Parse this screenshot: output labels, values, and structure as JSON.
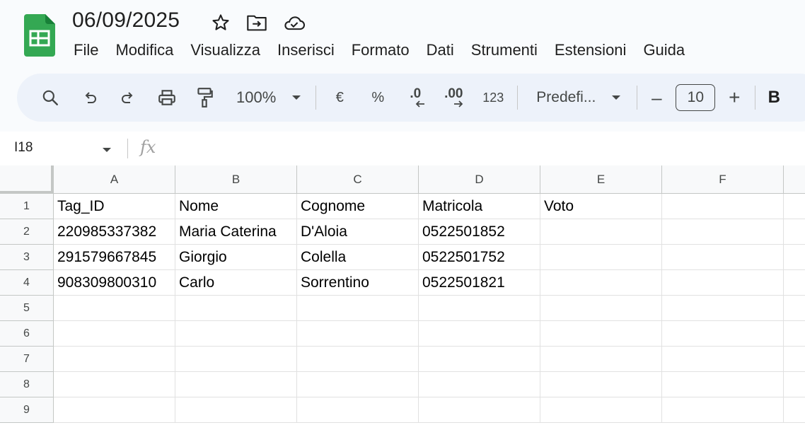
{
  "app": {
    "logo": "sheets-logo-icon"
  },
  "document": {
    "title": "06/09/2025"
  },
  "title_icons": [
    "star-icon",
    "move-to-folder-icon",
    "cloud-saved-icon"
  ],
  "menu": [
    "File",
    "Modifica",
    "Visualizza",
    "Inserisci",
    "Formato",
    "Dati",
    "Strumenti",
    "Estensioni",
    "Guida"
  ],
  "toolbar": {
    "zoom": "100%",
    "currency": "€",
    "percent": "%",
    "decrease_decimals": ".0",
    "increase_decimals": ".00",
    "number_format": "123",
    "font": "Predefi...",
    "font_size": "10",
    "minus": "–",
    "plus": "+",
    "bold": "B"
  },
  "formula_bar": {
    "cell_ref": "I18",
    "fx": "fx",
    "content": ""
  },
  "sheet": {
    "columns": [
      "A",
      "B",
      "C",
      "D",
      "E",
      "F"
    ],
    "rows": [
      "1",
      "2",
      "3",
      "4",
      "5",
      "6",
      "7",
      "8",
      "9"
    ],
    "cells": [
      [
        "Tag_ID",
        "Nome",
        "Cognome",
        "Matricola",
        "Voto",
        ""
      ],
      [
        "220985337382",
        "Maria Caterina",
        "D'Aloia",
        "0522501852",
        "",
        ""
      ],
      [
        "291579667845",
        "Giorgio",
        "Colella",
        "0522501752",
        "",
        ""
      ],
      [
        "908309800310",
        "Carlo",
        "Sorrentino",
        "0522501821",
        "",
        ""
      ],
      [
        "",
        "",
        "",
        "",
        "",
        ""
      ],
      [
        "",
        "",
        "",
        "",
        "",
        ""
      ],
      [
        "",
        "",
        "",
        "",
        "",
        ""
      ],
      [
        "",
        "",
        "",
        "",
        "",
        ""
      ],
      [
        "",
        "",
        "",
        "",
        "",
        ""
      ]
    ]
  },
  "colors": {
    "logo_green": "#34a853",
    "toolbar_bg": "#edf2fa",
    "header_bg": "#f8f9fa",
    "grid_line": "#e1e1e1"
  }
}
